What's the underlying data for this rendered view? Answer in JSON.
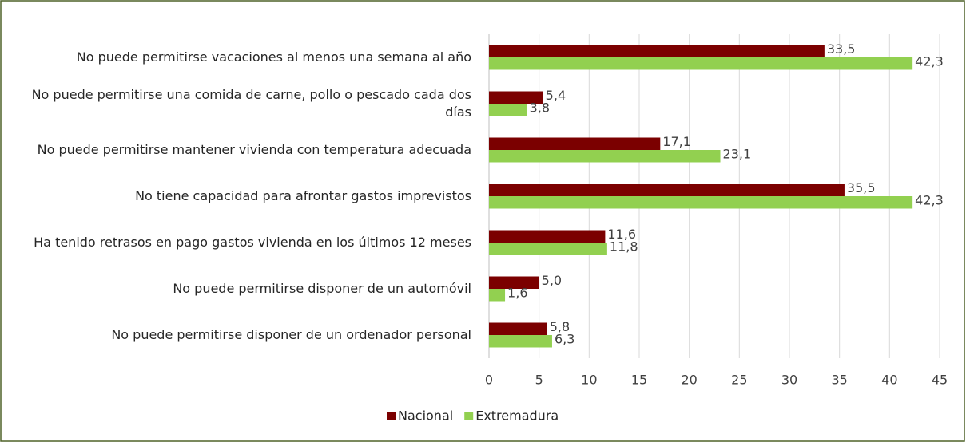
{
  "chart_data": {
    "type": "bar",
    "orientation": "horizontal",
    "categories": [
      "No puede permitirse vacaciones al menos una semana al año",
      "No puede permitirse una comida de carne, pollo o pescado cada dos días",
      "No puede permitirse mantener vivienda con temperatura adecuada",
      "No tiene capacidad para afrontar gastos imprevistos",
      "Ha tenido retrasos en pago gastos vivienda en los últimos 12 meses",
      "No puede permitirse disponer de un automóvil",
      "No puede permitirse disponer de un ordenador personal"
    ],
    "series": [
      {
        "name": "Nacional",
        "color": "#7b0000",
        "values": [
          33.5,
          5.4,
          17.1,
          35.5,
          11.6,
          5.0,
          5.8
        ],
        "value_labels": [
          "33,5",
          "5,4",
          "17,1",
          "35,5",
          "11,6",
          "5,0",
          "5,8"
        ]
      },
      {
        "name": "Extremadura",
        "color": "#92d050",
        "values": [
          42.3,
          3.8,
          23.1,
          42.3,
          11.8,
          1.6,
          6.3
        ],
        "value_labels": [
          "42,3",
          "3,8",
          "23,1",
          "42,3",
          "11,8",
          "1,6",
          "6,3"
        ]
      }
    ],
    "xlim": [
      0,
      45
    ],
    "xticks": [
      0,
      5,
      10,
      15,
      20,
      25,
      30,
      35,
      40,
      45
    ],
    "grid": true,
    "legend": "bottom"
  }
}
